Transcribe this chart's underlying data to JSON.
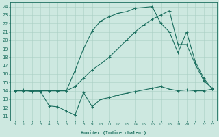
{
  "xlabel": "Humidex (Indice chaleur)",
  "xlim": [
    -0.5,
    23.5
  ],
  "ylim": [
    10.5,
    24.5
  ],
  "xticks": [
    0,
    1,
    2,
    3,
    4,
    5,
    6,
    7,
    8,
    9,
    10,
    11,
    12,
    13,
    14,
    15,
    16,
    17,
    18,
    19,
    20,
    21,
    22,
    23
  ],
  "yticks": [
    11,
    12,
    13,
    14,
    15,
    16,
    17,
    18,
    19,
    20,
    21,
    22,
    23,
    24
  ],
  "bg_color": "#cde8e0",
  "line_color": "#1a6e5e",
  "grid_color": "#aacfc5",
  "line1_x": [
    0,
    1,
    2,
    3,
    4,
    5,
    6,
    7,
    8,
    9,
    10,
    11,
    12,
    13,
    14,
    15,
    16,
    17,
    18,
    19,
    20,
    21,
    22,
    23
  ],
  "line1_y": [
    14.0,
    14.1,
    13.9,
    13.9,
    12.2,
    12.1,
    11.6,
    11.1,
    13.8,
    12.1,
    13.0,
    13.2,
    13.5,
    13.7,
    13.9,
    14.1,
    14.3,
    14.5,
    14.2,
    14.0,
    14.1,
    14.0,
    14.0,
    14.2
  ],
  "line2_x": [
    0,
    1,
    2,
    3,
    4,
    5,
    6,
    7,
    8,
    9,
    10,
    11,
    12,
    13,
    14,
    15,
    16,
    17,
    18,
    19,
    20,
    21,
    22,
    23
  ],
  "line2_y": [
    14.0,
    14.0,
    14.0,
    14.0,
    14.0,
    14.0,
    14.0,
    14.5,
    15.5,
    16.5,
    17.2,
    18.0,
    19.0,
    20.0,
    21.0,
    21.8,
    22.5,
    23.0,
    23.5,
    19.5,
    19.5,
    17.2,
    15.2,
    14.3
  ],
  "line3_x": [
    0,
    1,
    2,
    3,
    4,
    5,
    6,
    7,
    8,
    9,
    10,
    11,
    12,
    13,
    14,
    15,
    16,
    17,
    18,
    19,
    20,
    21,
    22,
    23
  ],
  "line3_y": [
    14.0,
    14.0,
    14.0,
    14.0,
    14.0,
    14.0,
    14.0,
    16.4,
    19.0,
    21.1,
    22.3,
    22.8,
    23.2,
    23.4,
    23.8,
    23.9,
    24.0,
    22.0,
    21.0,
    18.5,
    21.0,
    17.5,
    15.5,
    14.2
  ]
}
